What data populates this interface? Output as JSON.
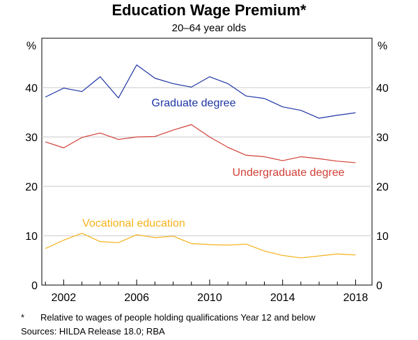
{
  "chart_data": {
    "type": "line",
    "title": "Education Wage Premium*",
    "subtitle": "20–64 year olds",
    "ylabel_left": "%",
    "ylabel_right": "%",
    "xlim": [
      2000.8,
      2018.9
    ],
    "ylim": [
      0,
      50
    ],
    "yticks": [
      0,
      10,
      20,
      30,
      40
    ],
    "xticks": [
      2002,
      2006,
      2010,
      2014,
      2018
    ],
    "x_minor_ticks": [
      2001,
      2002,
      2003,
      2004,
      2005,
      2006,
      2007,
      2008,
      2009,
      2010,
      2011,
      2012,
      2013,
      2014,
      2015,
      2016,
      2017,
      2018
    ],
    "grid": true,
    "x": [
      2001,
      2002,
      2003,
      2004,
      2005,
      2006,
      2007,
      2008,
      2009,
      2010,
      2011,
      2012,
      2013,
      2014,
      2015,
      2016,
      2017,
      2018
    ],
    "series": [
      {
        "name": "Graduate degree",
        "color": "#1f35a4",
        "values": [
          38.1,
          39.9,
          39.2,
          42.2,
          37.9,
          44.6,
          41.9,
          40.8,
          40.1,
          42.2,
          40.8,
          38.3,
          37.8,
          36.1,
          35.4,
          33.8,
          34.4,
          34.9
        ]
      },
      {
        "name": "Undergraduate degree",
        "color": "#d23f36",
        "values": [
          29.0,
          27.8,
          29.9,
          30.8,
          29.5,
          30.0,
          30.1,
          31.4,
          32.5,
          30.0,
          27.9,
          26.3,
          26.0,
          25.2,
          26.0,
          25.6,
          25.1,
          24.8
        ]
      },
      {
        "name": "Vocational education",
        "color": "#f5b21b",
        "values": [
          7.4,
          9.1,
          10.5,
          8.8,
          8.6,
          10.2,
          9.6,
          9.9,
          8.4,
          8.2,
          8.1,
          8.3,
          6.9,
          6.0,
          5.5,
          5.9,
          6.3,
          6.1
        ]
      }
    ]
  },
  "footnotes": {
    "asterisk": "*",
    "note": "Relative to wages of people holding qualifications Year 12 and below",
    "sources": "Sources:  HILDA Release 18.0; RBA"
  }
}
